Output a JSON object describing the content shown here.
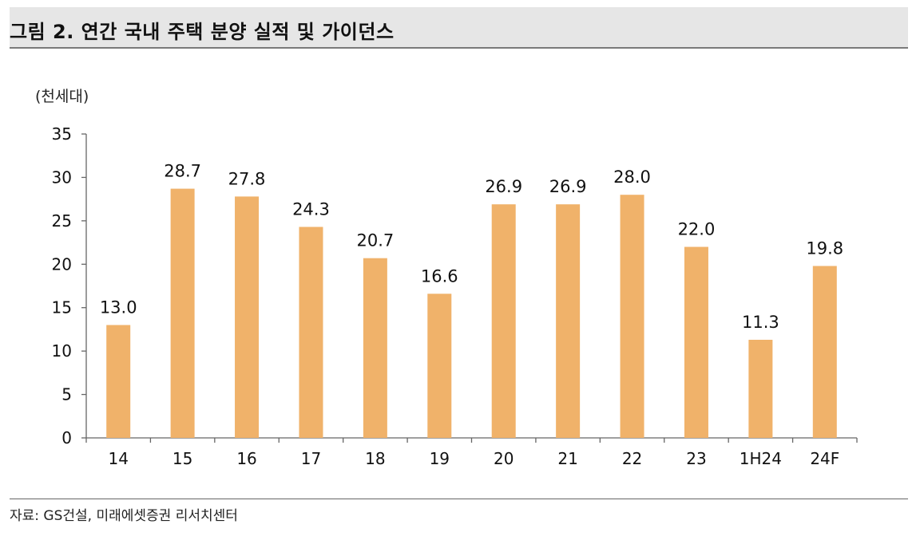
{
  "header": {
    "title": "그림 2. 연간 국내 주택 분양 실적 및 가이던스"
  },
  "colors": {
    "bar": "#f0b26a",
    "axis": "#666666",
    "title_bg": "#e6e6e6"
  },
  "chart_data": {
    "type": "bar",
    "unit_label": "(천세대)",
    "categories": [
      "14",
      "15",
      "16",
      "17",
      "18",
      "19",
      "20",
      "21",
      "22",
      "23",
      "1H24",
      "24F"
    ],
    "values": [
      13.0,
      28.7,
      27.8,
      24.3,
      20.7,
      16.6,
      26.9,
      26.9,
      28.0,
      22.0,
      11.3,
      19.8
    ],
    "value_labels": [
      "13.0",
      "28.7",
      "27.8",
      "24.3",
      "20.7",
      "16.6",
      "26.9",
      "26.9",
      "28.0",
      "22.0",
      "11.3",
      "19.8"
    ],
    "yticks": [
      0,
      5,
      10,
      15,
      20,
      25,
      30,
      35
    ],
    "ylim": [
      0,
      35
    ],
    "grid": false,
    "legend": "none"
  },
  "footer": {
    "source": "자료: GS건설, 미래에셋증권 리서치센터"
  }
}
